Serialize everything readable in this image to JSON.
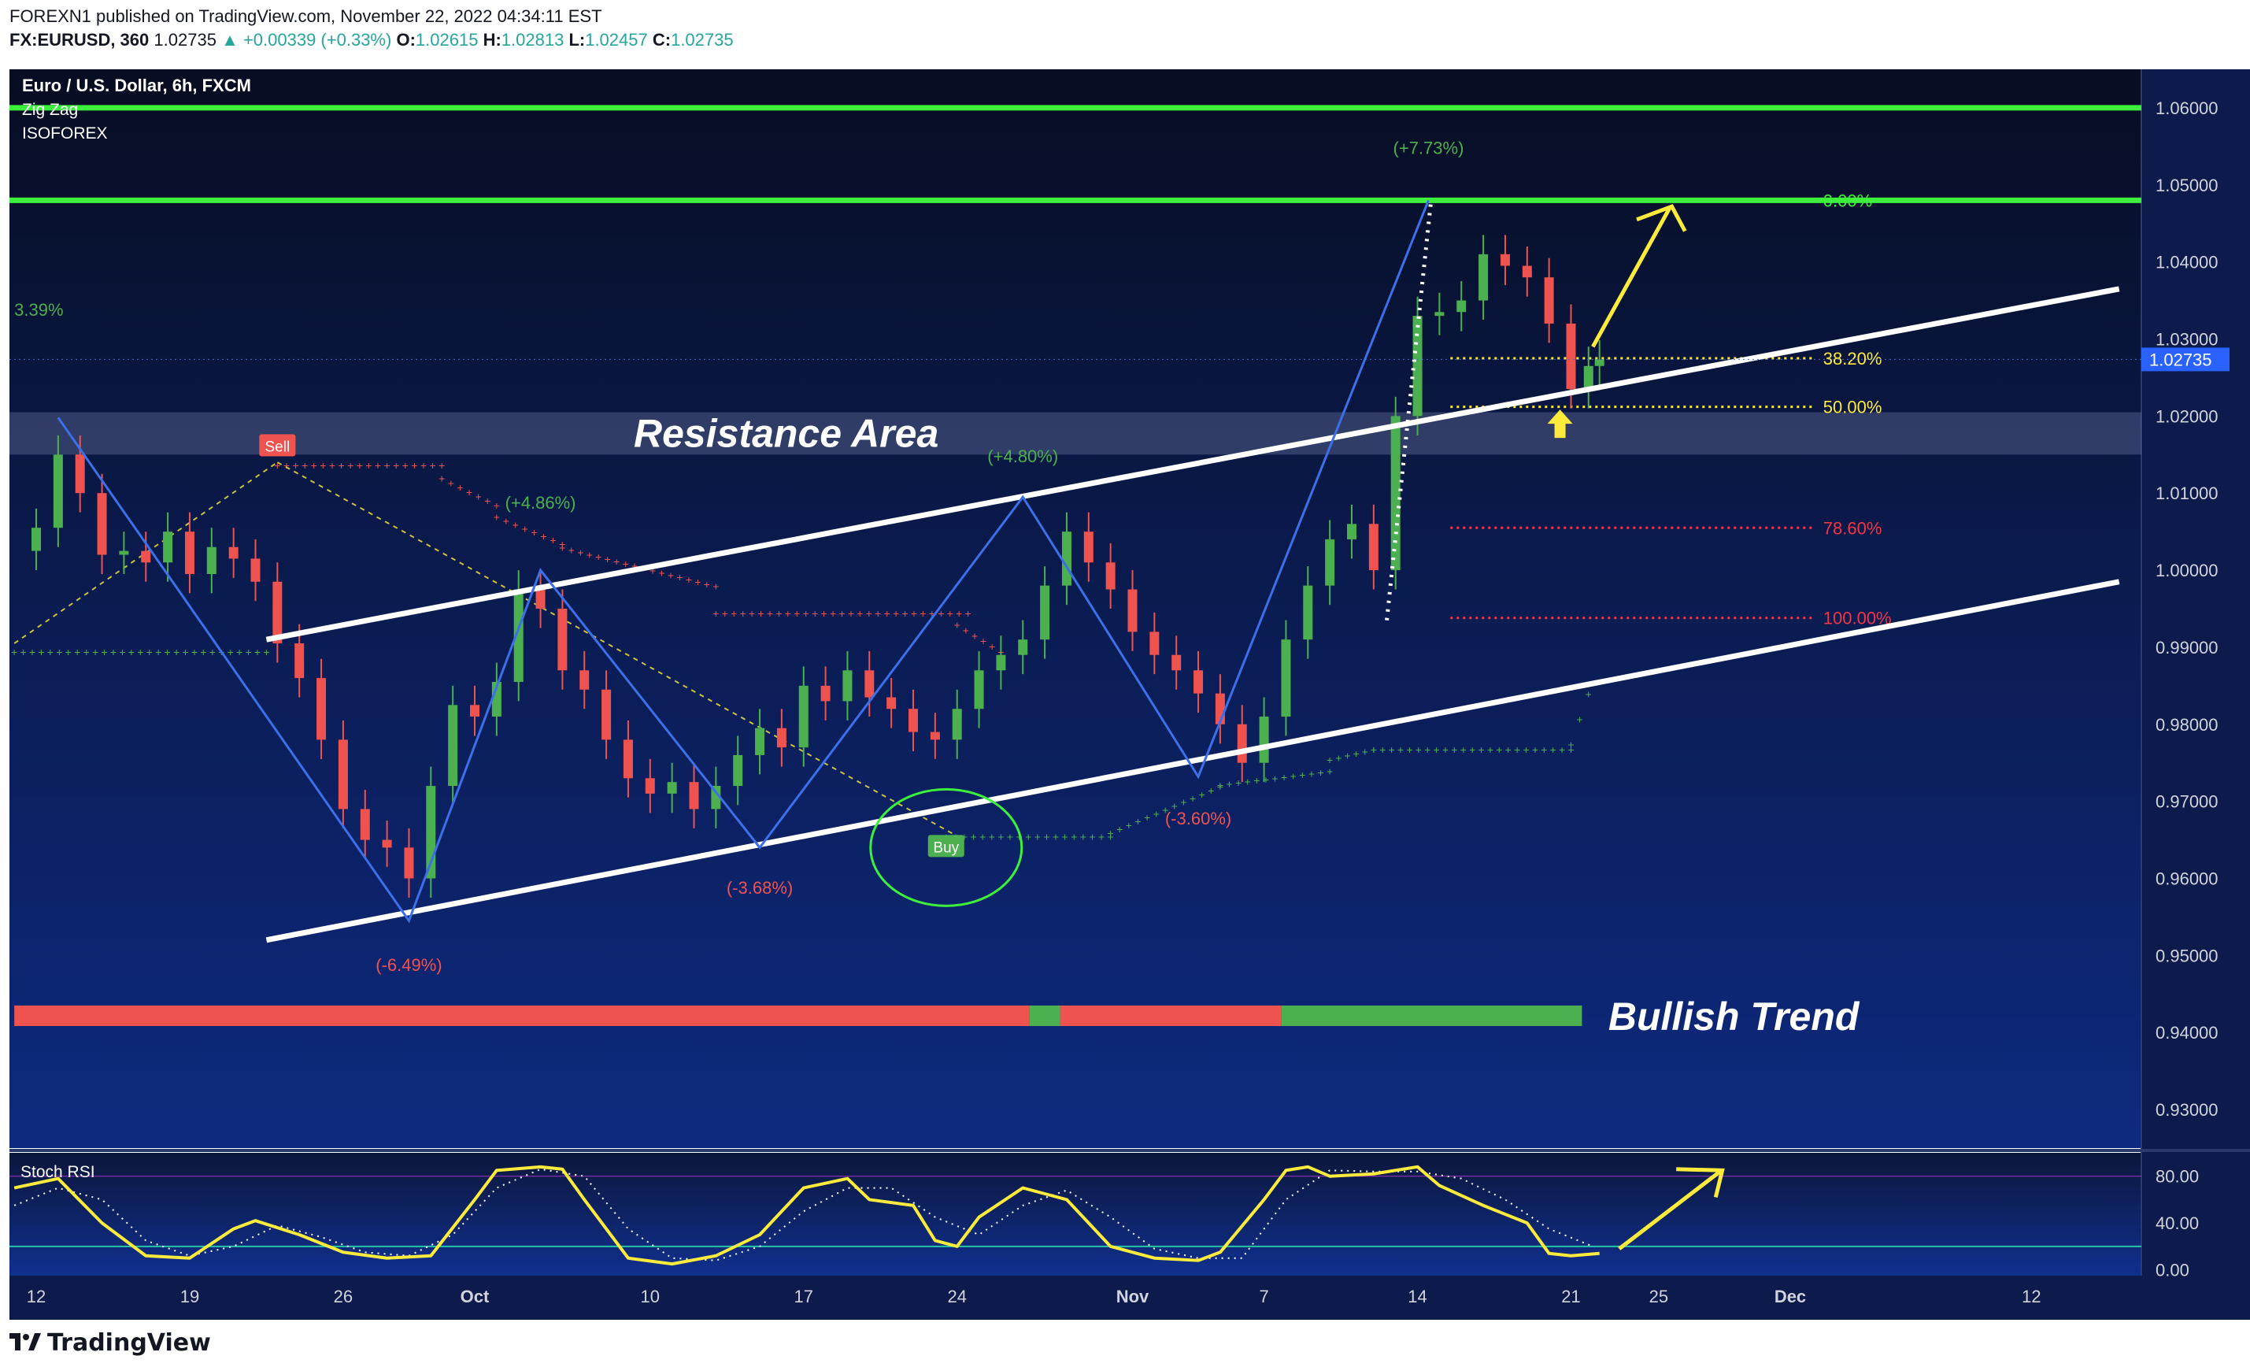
{
  "header": {
    "publisher_line": "FOREXN1 published on TradingView.com, November 22, 2022 04:34:11 EST",
    "symbol": "FX:EURUSD, 360",
    "last": "1.02735",
    "change": "▲ +0.00339 (+0.33%)",
    "o_label": "O:",
    "o": "1.02615",
    "h_label": "H:",
    "h": "1.02813",
    "l_label": "L:",
    "l": "1.02457",
    "c_label": "C:",
    "c": "1.02735"
  },
  "legend": {
    "title": "Euro / U.S. Dollar, 6h, FXCM",
    "indicator1": "Zig Zag",
    "indicator2": "ISOFOREX"
  },
  "footer": {
    "brand": "TradingView",
    "logo_icon": "tradingview-logo-icon"
  },
  "colors": {
    "bg_top": "#070d22",
    "bg_bottom": "#0e2a80",
    "bull": "#4caf50",
    "bear": "#ef5350",
    "zigzag": "#3d6fe8",
    "trendline": "#ffffff",
    "level": "#3cf03c",
    "arrow": "#ffeb3b",
    "fib_yellow": "#ffeb3b",
    "fib_red": "#f23645"
  },
  "chart_data": {
    "type": "line",
    "symbol": "EURUSD",
    "timeframe": "6h",
    "last_price_label": "1.02735",
    "y_axis": {
      "ylim": [
        0.925,
        1.065
      ],
      "ticks": [
        "1.06000",
        "1.05000",
        "1.04000",
        "1.03000",
        "1.02000",
        "1.01000",
        "1.00000",
        "0.99000",
        "0.98000",
        "0.97000",
        "0.96000",
        "0.95000",
        "0.94000",
        "0.93000"
      ]
    },
    "x_axis": {
      "ticks": [
        {
          "label": "12",
          "day": 0
        },
        {
          "label": "19",
          "day": 7
        },
        {
          "label": "26",
          "day": 14
        },
        {
          "label": "Oct",
          "day": 20
        },
        {
          "label": "10",
          "day": 28
        },
        {
          "label": "17",
          "day": 35
        },
        {
          "label": "24",
          "day": 42
        },
        {
          "label": "Nov",
          "day": 50
        },
        {
          "label": "7",
          "day": 56
        },
        {
          "label": "14",
          "day": 63
        },
        {
          "label": "21",
          "day": 70
        },
        {
          "label": "25",
          "day": 74
        },
        {
          "label": "Dec",
          "day": 80
        },
        {
          "label": "12",
          "day": 91
        }
      ]
    },
    "close_series": [
      [
        0,
        1.0055
      ],
      [
        1,
        1.015
      ],
      [
        2,
        1.01
      ],
      [
        3,
        1.002
      ],
      [
        4,
        1.0025
      ],
      [
        5,
        1.001
      ],
      [
        6,
        1.005
      ],
      [
        7,
        0.9995
      ],
      [
        8,
        1.003
      ],
      [
        9,
        1.0015
      ],
      [
        10,
        0.9985
      ],
      [
        11,
        0.9905
      ],
      [
        12,
        0.986
      ],
      [
        13,
        0.978
      ],
      [
        14,
        0.969
      ],
      [
        15,
        0.965
      ],
      [
        16,
        0.964
      ],
      [
        17,
        0.96
      ],
      [
        18,
        0.972
      ],
      [
        19,
        0.9825
      ],
      [
        20,
        0.981
      ],
      [
        21,
        0.9855
      ],
      [
        22,
        0.9975
      ],
      [
        23,
        0.995
      ],
      [
        24,
        0.987
      ],
      [
        25,
        0.9845
      ],
      [
        26,
        0.978
      ],
      [
        27,
        0.973
      ],
      [
        28,
        0.971
      ],
      [
        29,
        0.9725
      ],
      [
        30,
        0.969
      ],
      [
        31,
        0.972
      ],
      [
        32,
        0.976
      ],
      [
        33,
        0.9795
      ],
      [
        34,
        0.977
      ],
      [
        35,
        0.985
      ],
      [
        36,
        0.983
      ],
      [
        37,
        0.987
      ],
      [
        38,
        0.9835
      ],
      [
        39,
        0.982
      ],
      [
        40,
        0.979
      ],
      [
        41,
        0.978
      ],
      [
        42,
        0.982
      ],
      [
        43,
        0.987
      ],
      [
        44,
        0.989
      ],
      [
        45,
        0.991
      ],
      [
        46,
        0.998
      ],
      [
        47,
        1.005
      ],
      [
        48,
        1.001
      ],
      [
        49,
        0.9975
      ],
      [
        50,
        0.992
      ],
      [
        51,
        0.989
      ],
      [
        52,
        0.987
      ],
      [
        53,
        0.984
      ],
      [
        54,
        0.98
      ],
      [
        55,
        0.975
      ],
      [
        56,
        0.981
      ],
      [
        57,
        0.991
      ],
      [
        58,
        0.998
      ],
      [
        59,
        1.004
      ],
      [
        60,
        1.006
      ],
      [
        61,
        1.0
      ],
      [
        62,
        1.02
      ],
      [
        63,
        1.033
      ],
      [
        64,
        1.0335
      ],
      [
        65,
        1.035
      ],
      [
        66,
        1.041
      ],
      [
        67,
        1.0395
      ],
      [
        68,
        1.038
      ],
      [
        69,
        1.032
      ],
      [
        70,
        1.0235
      ],
      [
        70.8,
        1.0265
      ],
      [
        71.3,
        1.02735
      ]
    ],
    "horizontal_levels": [
      1.06,
      1.048
    ],
    "resistance_area": {
      "label": "Resistance Area",
      "range": [
        1.015,
        1.0205
      ]
    },
    "channel": {
      "upper": [
        [
          10.5,
          0.991
        ],
        [
          95,
          1.0365
        ]
      ],
      "lower": [
        [
          10.5,
          0.952
        ],
        [
          95,
          0.9985
        ]
      ]
    },
    "zigzag": [
      [
        1,
        1.0198
      ],
      [
        17,
        0.9545
      ],
      [
        23,
        1.0
      ],
      [
        33,
        0.964
      ],
      [
        45,
        1.0095
      ],
      [
        53,
        0.9732
      ],
      [
        63.5,
        1.048
      ]
    ],
    "zigzag_labels": [
      {
        "day": -1,
        "price": 1.033,
        "text": "3.39%"
      },
      {
        "day": 17,
        "price": 0.948,
        "text": "(-6.49%)"
      },
      {
        "day": 23,
        "price": 1.008,
        "text": "(+4.86%)"
      },
      {
        "day": 33,
        "price": 0.958,
        "text": "(-3.68%)"
      },
      {
        "day": 45,
        "price": 1.014,
        "text": "(+4.80%)"
      },
      {
        "day": 53,
        "price": 0.967,
        "text": "(-3.60%)"
      },
      {
        "day": 63.5,
        "price": 1.054,
        "text": "(+7.73%)"
      }
    ],
    "fib_levels": [
      {
        "label": "0.00%",
        "price": 1.048,
        "color": "green"
      },
      {
        "label": "38.20%",
        "price": 1.0275,
        "color": "yellow"
      },
      {
        "label": "50.00%",
        "price": 1.0212,
        "color": "yellow"
      },
      {
        "label": "78.60%",
        "price": 1.0055,
        "color": "red"
      },
      {
        "label": "100.00%",
        "price": 0.9938,
        "color": "red"
      }
    ],
    "signals": [
      {
        "text": "Sell",
        "day": 11,
        "price": 1.016
      },
      {
        "text": "Buy",
        "day": 41.5,
        "price": 0.964
      }
    ],
    "trend_bar": {
      "label": "Bullish Trend",
      "segments": [
        {
          "from": -1,
          "to": 45.3,
          "state": "bear"
        },
        {
          "from": 45.3,
          "to": 46.7,
          "state": "bull"
        },
        {
          "from": 46.7,
          "to": 56.8,
          "state": "bear"
        },
        {
          "from": 56.8,
          "to": 70.5,
          "state": "bull"
        }
      ]
    },
    "stoch_rsi": {
      "label": "Stoch RSI",
      "ticks": [
        "80.00",
        "40.00",
        "0.00"
      ],
      "ylim": [
        -5,
        100
      ],
      "bands": [
        80,
        20
      ],
      "k": [
        [
          -1,
          70
        ],
        [
          1,
          78
        ],
        [
          3,
          40
        ],
        [
          5,
          12
        ],
        [
          7,
          10
        ],
        [
          9,
          35
        ],
        [
          10,
          42
        ],
        [
          12,
          30
        ],
        [
          14,
          15
        ],
        [
          16,
          10
        ],
        [
          18,
          12
        ],
        [
          20,
          60
        ],
        [
          21,
          85
        ],
        [
          23,
          88
        ],
        [
          24,
          86
        ],
        [
          25,
          60
        ],
        [
          27,
          10
        ],
        [
          29,
          5
        ],
        [
          31,
          12
        ],
        [
          33,
          30
        ],
        [
          35,
          70
        ],
        [
          37,
          78
        ],
        [
          38,
          60
        ],
        [
          40,
          55
        ],
        [
          41,
          25
        ],
        [
          42,
          20
        ],
        [
          43,
          45
        ],
        [
          45,
          70
        ],
        [
          46,
          65
        ],
        [
          47,
          60
        ],
        [
          49,
          20
        ],
        [
          51,
          10
        ],
        [
          53,
          8
        ],
        [
          54,
          15
        ],
        [
          56,
          60
        ],
        [
          57,
          85
        ],
        [
          58,
          88
        ],
        [
          59,
          80
        ],
        [
          61,
          82
        ],
        [
          63,
          88
        ],
        [
          64,
          72
        ],
        [
          66,
          55
        ],
        [
          68,
          40
        ],
        [
          69,
          14
        ],
        [
          70,
          12
        ],
        [
          71.3,
          14
        ]
      ],
      "d": [
        [
          -1,
          55
        ],
        [
          1,
          70
        ],
        [
          3,
          60
        ],
        [
          5,
          25
        ],
        [
          7,
          12
        ],
        [
          9,
          20
        ],
        [
          11,
          38
        ],
        [
          13,
          28
        ],
        [
          15,
          15
        ],
        [
          17,
          12
        ],
        [
          19,
          30
        ],
        [
          21,
          70
        ],
        [
          23,
          86
        ],
        [
          25,
          80
        ],
        [
          27,
          35
        ],
        [
          29,
          10
        ],
        [
          31,
          8
        ],
        [
          33,
          20
        ],
        [
          35,
          50
        ],
        [
          37,
          70
        ],
        [
          39,
          70
        ],
        [
          41,
          45
        ],
        [
          43,
          30
        ],
        [
          45,
          55
        ],
        [
          47,
          68
        ],
        [
          49,
          45
        ],
        [
          51,
          18
        ],
        [
          53,
          10
        ],
        [
          55,
          10
        ],
        [
          57,
          60
        ],
        [
          59,
          85
        ],
        [
          61,
          84
        ],
        [
          63,
          84
        ],
        [
          65,
          78
        ],
        [
          67,
          60
        ],
        [
          69,
          35
        ],
        [
          71,
          20
        ]
      ]
    }
  }
}
